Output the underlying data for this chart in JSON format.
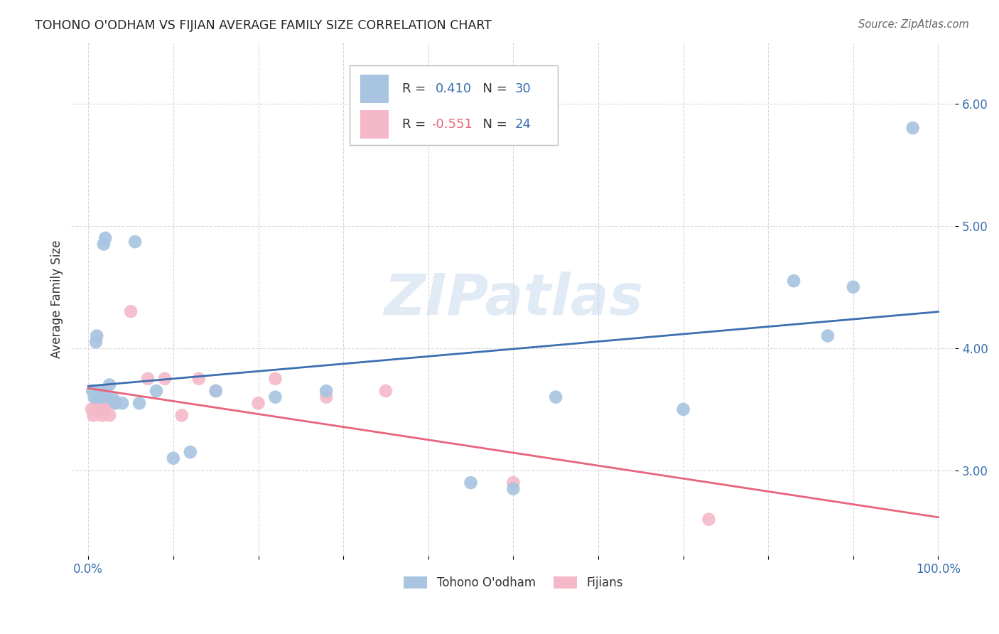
{
  "title": "TOHONO O'ODHAM VS FIJIAN AVERAGE FAMILY SIZE CORRELATION CHART",
  "source": "Source: ZipAtlas.com",
  "ylabel": "Average Family Size",
  "ylim": [
    2.3,
    6.5
  ],
  "xlim": [
    -0.02,
    1.02
  ],
  "yticks": [
    3.0,
    4.0,
    5.0,
    6.0
  ],
  "xticks": [
    0.0,
    0.1,
    0.2,
    0.3,
    0.4,
    0.5,
    0.6,
    0.7,
    0.8,
    0.9,
    1.0
  ],
  "blue_R": 0.41,
  "blue_N": 30,
  "pink_R": -0.551,
  "pink_N": 24,
  "blue_color": "#a8c4e0",
  "pink_color": "#f4b8c8",
  "blue_line_color": "#3b6faf",
  "pink_line_color": "#e8647a",
  "background_color": "#ffffff",
  "grid_color": "#d8d8d8",
  "blue_points_x": [
    0.005,
    0.007,
    0.009,
    0.01,
    0.012,
    0.014,
    0.016,
    0.018,
    0.02,
    0.022,
    0.025,
    0.03,
    0.032,
    0.04,
    0.055,
    0.06,
    0.08,
    0.1,
    0.12,
    0.15,
    0.22,
    0.28,
    0.45,
    0.5,
    0.55,
    0.7,
    0.83,
    0.87,
    0.9,
    0.97
  ],
  "blue_points_y": [
    3.65,
    3.6,
    4.05,
    4.1,
    3.6,
    3.65,
    3.6,
    4.85,
    4.9,
    3.6,
    3.7,
    3.58,
    3.55,
    3.55,
    4.87,
    3.55,
    3.65,
    3.1,
    3.15,
    3.65,
    3.6,
    3.65,
    2.9,
    2.85,
    3.6,
    3.5,
    4.55,
    4.1,
    4.5,
    5.8
  ],
  "pink_points_x": [
    0.004,
    0.006,
    0.008,
    0.01,
    0.012,
    0.014,
    0.016,
    0.018,
    0.02,
    0.022,
    0.025,
    0.03,
    0.05,
    0.07,
    0.09,
    0.11,
    0.13,
    0.15,
    0.2,
    0.22,
    0.28,
    0.35,
    0.5,
    0.73
  ],
  "pink_points_y": [
    3.5,
    3.45,
    3.5,
    3.55,
    3.55,
    3.5,
    3.45,
    3.5,
    3.65,
    3.55,
    3.45,
    3.55,
    4.3,
    3.75,
    3.75,
    3.45,
    3.75,
    3.65,
    3.55,
    3.75,
    3.6,
    3.65,
    2.9,
    2.6
  ],
  "watermark": "ZIPatlas",
  "legend_label_blue": "Tohono O'odham",
  "legend_label_pink": "Fijians"
}
